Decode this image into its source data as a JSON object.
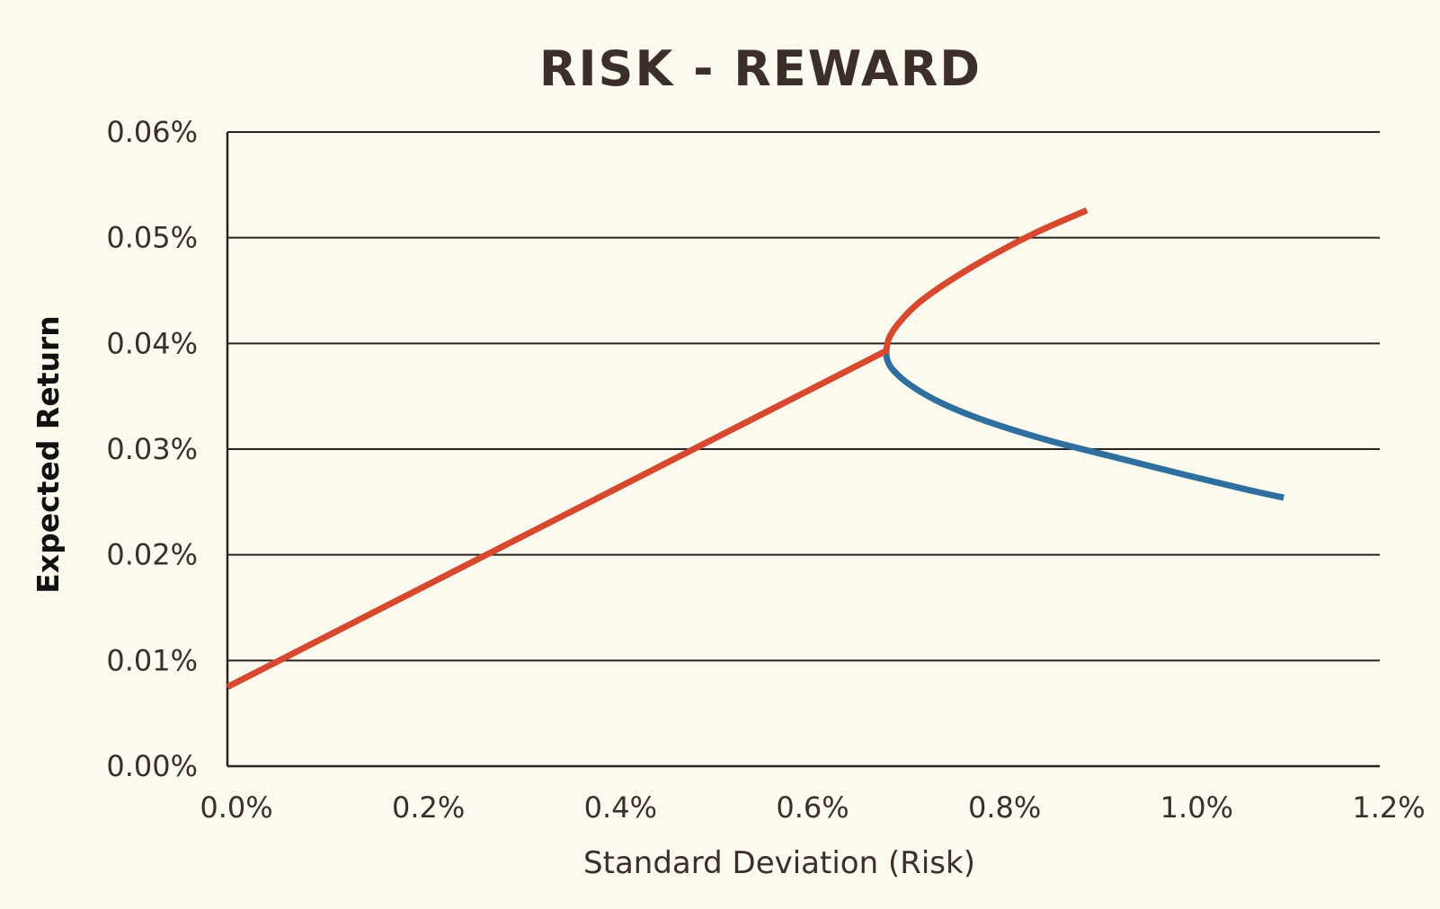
{
  "chart_data": {
    "type": "line",
    "title": "RISK - REWARD",
    "xlabel": "Standard Deviation (Risk)",
    "ylabel": "Expected Return",
    "xlim": [
      0,
      1.2
    ],
    "ylim": [
      0,
      0.06
    ],
    "x_ticks": [
      "0.0%",
      "0.2%",
      "0.4%",
      "0.6%",
      "0.8%",
      "1.0%",
      "1.2%"
    ],
    "y_ticks": [
      "0.00%",
      "0.01%",
      "0.02%",
      "0.03%",
      "0.04%",
      "0.05%",
      "0.06%"
    ],
    "grid": "horizontal",
    "legend": "none",
    "series": [
      {
        "color": "#2f6f9f",
        "points": [
          {
            "x": 0.686,
            "y": 0.0393
          },
          {
            "x": 0.687,
            "y": 0.0385
          },
          {
            "x": 0.693,
            "y": 0.0375
          },
          {
            "x": 0.712,
            "y": 0.036
          },
          {
            "x": 0.745,
            "y": 0.0343
          },
          {
            "x": 0.795,
            "y": 0.0325
          },
          {
            "x": 0.86,
            "y": 0.0307
          },
          {
            "x": 0.93,
            "y": 0.0291
          },
          {
            "x": 1.0,
            "y": 0.0275
          },
          {
            "x": 1.06,
            "y": 0.0262
          },
          {
            "x": 1.1,
            "y": 0.0254
          }
        ]
      },
      {
        "color": "#d6492f",
        "points": [
          {
            "x": 0.0,
            "y": 0.0075
          },
          {
            "x": 0.686,
            "y": 0.0393
          },
          {
            "x": 0.689,
            "y": 0.0405
          },
          {
            "x": 0.698,
            "y": 0.0418
          },
          {
            "x": 0.718,
            "y": 0.0437
          },
          {
            "x": 0.75,
            "y": 0.0458
          },
          {
            "x": 0.79,
            "y": 0.048
          },
          {
            "x": 0.84,
            "y": 0.0504
          },
          {
            "x": 0.895,
            "y": 0.0526
          }
        ]
      }
    ]
  }
}
